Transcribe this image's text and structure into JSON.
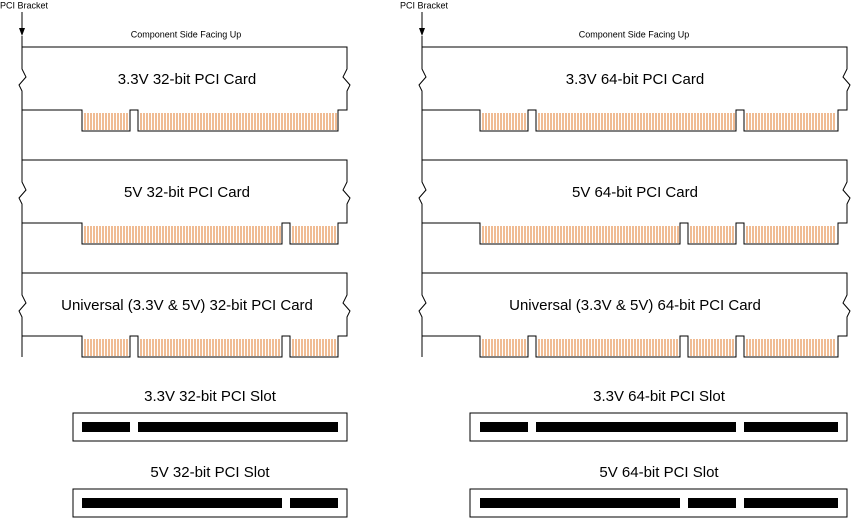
{
  "left": {
    "bracket_label": "PCI Bracket",
    "orientation": "Component Side Facing Up",
    "cards": [
      "3.3V 32-bit PCI Card",
      "5V 32-bit PCI Card",
      "Universal (3.3V & 5V) 32-bit PCI Card"
    ],
    "slots": [
      "3.3V 32-bit PCI Slot",
      "5V 32-bit PCI Slot"
    ]
  },
  "right": {
    "bracket_label": "PCI Bracket",
    "orientation": "Component Side Facing Up",
    "cards": [
      "3.3V 64-bit PCI Card",
      "5V 64-bit PCI Card",
      "Universal (3.3V & 5V) 64-bit PCI Card"
    ],
    "slots": [
      "3.3V 64-bit PCI Slot",
      "5V 64-bit PCI Slot"
    ]
  }
}
